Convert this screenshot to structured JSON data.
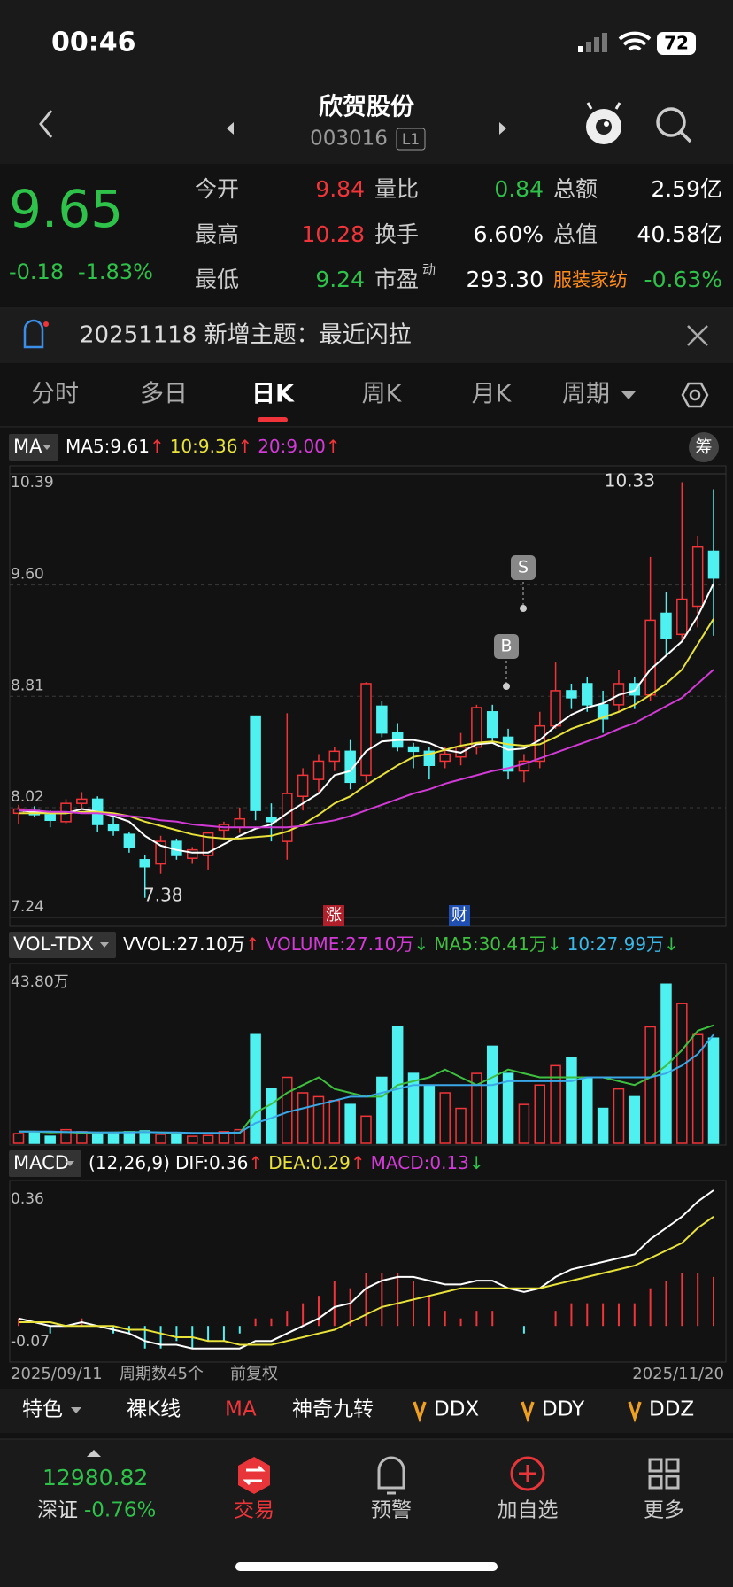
{
  "status_bar": {
    "time": "00:46",
    "battery": "72"
  },
  "header": {
    "title": "欣贺股份",
    "code": "003016",
    "badge": "L1"
  },
  "quote": {
    "price": "9.65",
    "change": "-0.18",
    "change_pct": "-1.83%",
    "fields": [
      {
        "label": "今开",
        "value": "9.84"
      },
      {
        "label": "最高",
        "value": "10.28"
      },
      {
        "label": "最低",
        "value": "9.24"
      },
      {
        "label": "量比",
        "value": "0.84"
      },
      {
        "label": "换手",
        "value": "6.60%"
      },
      {
        "label": "市盈",
        "sup": "动",
        "value": "293.30"
      },
      {
        "label": "总额",
        "value": "2.59亿"
      },
      {
        "label": "总值",
        "value": "40.58亿"
      },
      {
        "label": "服装家纺",
        "value": "-0.63%"
      }
    ]
  },
  "banner": {
    "text": "20251118 新增主题：最近闪拉"
  },
  "tabs": [
    "分时",
    "多日",
    "日K",
    "周K",
    "月K",
    "周期"
  ],
  "chart_data": [
    {
      "type": "candlestick",
      "selector": "MA",
      "side_button": "筹",
      "legend": [
        {
          "text": "MA5:9.61",
          "arrow": "↑"
        },
        {
          "text": "10:9.36",
          "arrow": "↑"
        },
        {
          "text": "20:9.00",
          "arrow": "↑"
        }
      ],
      "ylim": [
        7.24,
        10.39
      ],
      "yticks": [
        10.39,
        {
          "value": 9.6,
          "label": "9.60"
        },
        8.81,
        8.02,
        7.24
      ],
      "open": [
        7.98,
        8.0,
        7.97,
        7.92,
        8.05,
        8.08,
        7.9,
        7.83,
        7.65,
        7.62,
        7.78,
        7.66,
        7.68,
        7.86,
        7.88,
        8.67,
        7.95,
        7.78,
        8.1,
        8.22,
        8.35,
        8.42,
        8.25,
        8.74,
        8.55,
        8.45,
        8.42,
        8.35,
        8.38,
        8.45,
        8.7,
        8.52,
        8.28,
        8.35,
        8.6,
        8.85,
        8.9,
        8.75,
        8.75,
        8.9,
        8.82,
        9.4,
        9.25,
        9.45,
        9.84
      ],
      "high": [
        8.04,
        8.03,
        8.0,
        8.08,
        8.13,
        8.1,
        7.95,
        7.85,
        7.68,
        7.82,
        7.8,
        7.74,
        7.85,
        7.92,
        8.02,
        8.67,
        8.05,
        8.69,
        8.3,
        8.4,
        8.45,
        8.5,
        8.91,
        8.78,
        8.62,
        8.48,
        8.45,
        8.45,
        8.55,
        8.75,
        8.75,
        8.58,
        8.4,
        8.7,
        9.05,
        8.9,
        8.95,
        8.85,
        9.0,
        8.95,
        9.8,
        9.55,
        10.33,
        9.95,
        10.28
      ],
      "low": [
        7.9,
        7.95,
        7.88,
        7.9,
        8.02,
        7.85,
        7.82,
        7.7,
        7.38,
        7.55,
        7.65,
        7.62,
        7.58,
        7.8,
        7.84,
        7.93,
        7.78,
        7.65,
        8.0,
        8.12,
        8.28,
        8.15,
        8.2,
        8.52,
        8.42,
        8.3,
        8.22,
        8.3,
        8.32,
        8.4,
        8.48,
        8.22,
        8.2,
        8.3,
        8.58,
        8.72,
        8.7,
        8.55,
        8.7,
        8.72,
        8.78,
        9.1,
        9.2,
        9.3,
        9.24
      ],
      "close": [
        8.01,
        7.97,
        7.93,
        8.05,
        8.08,
        7.9,
        7.86,
        7.74,
        7.6,
        7.78,
        7.68,
        7.72,
        7.84,
        7.9,
        7.94,
        8.0,
        7.92,
        8.12,
        8.25,
        8.35,
        8.42,
        8.2,
        8.9,
        8.55,
        8.45,
        8.42,
        8.32,
        8.4,
        8.45,
        8.73,
        8.52,
        8.28,
        8.35,
        8.6,
        8.85,
        8.8,
        8.75,
        8.65,
        8.9,
        8.82,
        9.35,
        9.22,
        9.5,
        9.87,
        9.65
      ],
      "up_color": "#f0353a",
      "down_color": "#4ff0f0",
      "series": [
        {
          "name": "MA5",
          "color": "#ffffff",
          "values": [
            8.0,
            7.99,
            7.98,
            7.98,
            8.01,
            7.99,
            7.96,
            7.92,
            7.82,
            7.75,
            7.72,
            7.7,
            7.7,
            7.76,
            7.82,
            7.87,
            7.9,
            7.98,
            8.05,
            8.12,
            8.25,
            8.28,
            8.42,
            8.49,
            8.5,
            8.5,
            8.48,
            8.43,
            8.41,
            8.47,
            8.48,
            8.43,
            8.44,
            8.5,
            8.6,
            8.68,
            8.73,
            8.76,
            8.82,
            8.85,
            9.0,
            9.1,
            9.2,
            9.38,
            9.61
          ]
        },
        {
          "name": "MA10",
          "color": "#e8e23a",
          "values": [
            7.98,
            7.98,
            7.98,
            7.98,
            7.99,
            7.99,
            7.98,
            7.96,
            7.92,
            7.89,
            7.86,
            7.83,
            7.81,
            7.8,
            7.8,
            7.81,
            7.82,
            7.85,
            7.9,
            7.97,
            8.05,
            8.1,
            8.18,
            8.25,
            8.32,
            8.38,
            8.4,
            8.43,
            8.46,
            8.48,
            8.49,
            8.47,
            8.46,
            8.47,
            8.52,
            8.58,
            8.62,
            8.66,
            8.7,
            8.75,
            8.82,
            8.9,
            9.0,
            9.18,
            9.36
          ]
        },
        {
          "name": "MA20",
          "color": "#d23ad6",
          "values": [
            8.0,
            8.0,
            7.99,
            7.99,
            7.98,
            7.98,
            7.97,
            7.96,
            7.95,
            7.93,
            7.92,
            7.9,
            7.89,
            7.88,
            7.88,
            7.88,
            7.88,
            7.88,
            7.89,
            7.91,
            7.93,
            7.96,
            8.0,
            8.04,
            8.08,
            8.12,
            8.15,
            8.19,
            8.22,
            8.25,
            8.28,
            8.3,
            8.33,
            8.37,
            8.41,
            8.45,
            8.49,
            8.53,
            8.58,
            8.62,
            8.68,
            8.74,
            8.8,
            8.9,
            9.0
          ]
        }
      ],
      "annotations": {
        "high": "10.33",
        "low": "7.38",
        "events": [
          "涨",
          "财"
        ],
        "signals": [
          "B",
          "S"
        ]
      }
    },
    {
      "type": "bar",
      "selector": "VOL-TDX",
      "legend": [
        {
          "text": "VVOL:27.10万",
          "arrow": "↑"
        },
        {
          "text": "VOLUME:27.10万",
          "arrow": "↓"
        },
        {
          "text": "MA5:30.41万",
          "arrow": "↓"
        },
        {
          "text": "10:27.99万",
          "arrow": "↓"
        }
      ],
      "ylim": [
        0,
        43.8
      ],
      "yticks": [
        {
          "value": 43.8,
          "label": "43.80万"
        }
      ],
      "values": [
        2.5,
        2.8,
        1.8,
        3.5,
        3,
        2.7,
        2.5,
        3,
        3.2,
        2.3,
        2.5,
        1.8,
        2,
        3,
        3.5,
        28,
        14,
        17,
        13,
        12,
        11,
        10,
        7,
        17,
        30,
        18,
        15,
        13,
        9,
        18,
        25,
        18,
        10,
        15,
        20,
        22,
        17,
        9,
        14,
        12,
        30,
        41,
        36,
        28,
        27.1
      ],
      "series": [
        {
          "name": "MA5",
          "color": "#3fbf3f",
          "values": [
            3,
            3,
            2.8,
            2.9,
            2.7,
            2.8,
            2.8,
            2.9,
            2.9,
            2.8,
            2.7,
            2.6,
            2.6,
            2.5,
            2.6,
            7.9,
            10.1,
            13,
            15,
            17,
            14,
            13,
            12,
            12,
            15,
            16,
            17,
            19,
            17,
            15,
            17,
            19,
            18,
            17,
            17,
            17,
            17,
            17,
            16,
            15,
            17,
            20,
            24,
            29,
            30.41
          ]
        },
        {
          "name": "10",
          "color": "#3aa8e8",
          "values": [
            3,
            3,
            3,
            2.9,
            2.9,
            2.8,
            2.8,
            2.8,
            2.9,
            2.8,
            2.8,
            2.7,
            2.7,
            2.7,
            2.8,
            5.2,
            6.5,
            8,
            9,
            10,
            11,
            12,
            12,
            13,
            14,
            15,
            15,
            15,
            15,
            15,
            15,
            16,
            16,
            16,
            16,
            16,
            17,
            17,
            17,
            17,
            17,
            18,
            20,
            23,
            27.99
          ]
        }
      ]
    },
    {
      "type": "bar",
      "selector": "MACD",
      "params": "(12,26,9)",
      "legend": [
        {
          "text": "DIF:0.36",
          "arrow": "↑"
        },
        {
          "text": "DEA:0.29",
          "arrow": "↑"
        },
        {
          "text": "MACD:0.13",
          "arrow": "↓"
        }
      ],
      "ylim": [
        -0.07,
        0.36
      ],
      "yticks": [
        0.36,
        -0.07
      ],
      "values": [
        0.02,
        0,
        -0.02,
        0,
        0.02,
        0,
        -0.02,
        -0.02,
        -0.06,
        -0.06,
        -0.04,
        -0.06,
        -0.04,
        -0.04,
        -0.02,
        0.02,
        0.02,
        0.04,
        0.06,
        0.08,
        0.12,
        0.1,
        0.14,
        0.14,
        0.14,
        0.12,
        0.08,
        0.04,
        0.02,
        0.04,
        0.04,
        0,
        -0.02,
        0,
        0.04,
        0.06,
        0.06,
        0.06,
        0.06,
        0.06,
        0.1,
        0.12,
        0.14,
        0.14,
        0.13
      ],
      "series": [
        {
          "name": "DIF",
          "color": "#ffffff",
          "values": [
            0.02,
            0.01,
            0,
            0,
            0.01,
            0,
            -0.01,
            -0.02,
            -0.04,
            -0.05,
            -0.05,
            -0.06,
            -0.06,
            -0.06,
            -0.06,
            -0.04,
            -0.04,
            -0.02,
            0,
            0.02,
            0.05,
            0.06,
            0.1,
            0.12,
            0.13,
            0.13,
            0.12,
            0.11,
            0.11,
            0.12,
            0.12,
            0.1,
            0.09,
            0.1,
            0.13,
            0.15,
            0.16,
            0.17,
            0.18,
            0.19,
            0.23,
            0.26,
            0.29,
            0.33,
            0.36
          ]
        },
        {
          "name": "DEA",
          "color": "#e8e23a",
          "values": [
            0.01,
            0.01,
            0.01,
            0,
            0,
            0,
            0,
            -0.01,
            -0.01,
            -0.02,
            -0.03,
            -0.03,
            -0.04,
            -0.04,
            -0.05,
            -0.05,
            -0.05,
            -0.04,
            -0.03,
            -0.02,
            -0.01,
            0.01,
            0.03,
            0.05,
            0.06,
            0.07,
            0.08,
            0.09,
            0.1,
            0.1,
            0.1,
            0.1,
            0.1,
            0.1,
            0.11,
            0.12,
            0.13,
            0.14,
            0.15,
            0.16,
            0.18,
            0.2,
            0.22,
            0.26,
            0.29
          ]
        }
      ],
      "x_labels": [
        "2025/09/11",
        "2025/11/20"
      ],
      "period_count": "周期数45个",
      "adjust": "前复权"
    }
  ],
  "toolbar": [
    "特色",
    "裸K线",
    "MA",
    "神奇九转",
    "DDX",
    "DDY",
    "DDZ"
  ],
  "bottom_nav": {
    "index_value": "12980.82",
    "index_name": "深证",
    "index_change": "-0.76%",
    "items": [
      "交易",
      "预警",
      "加自选",
      "更多"
    ]
  }
}
